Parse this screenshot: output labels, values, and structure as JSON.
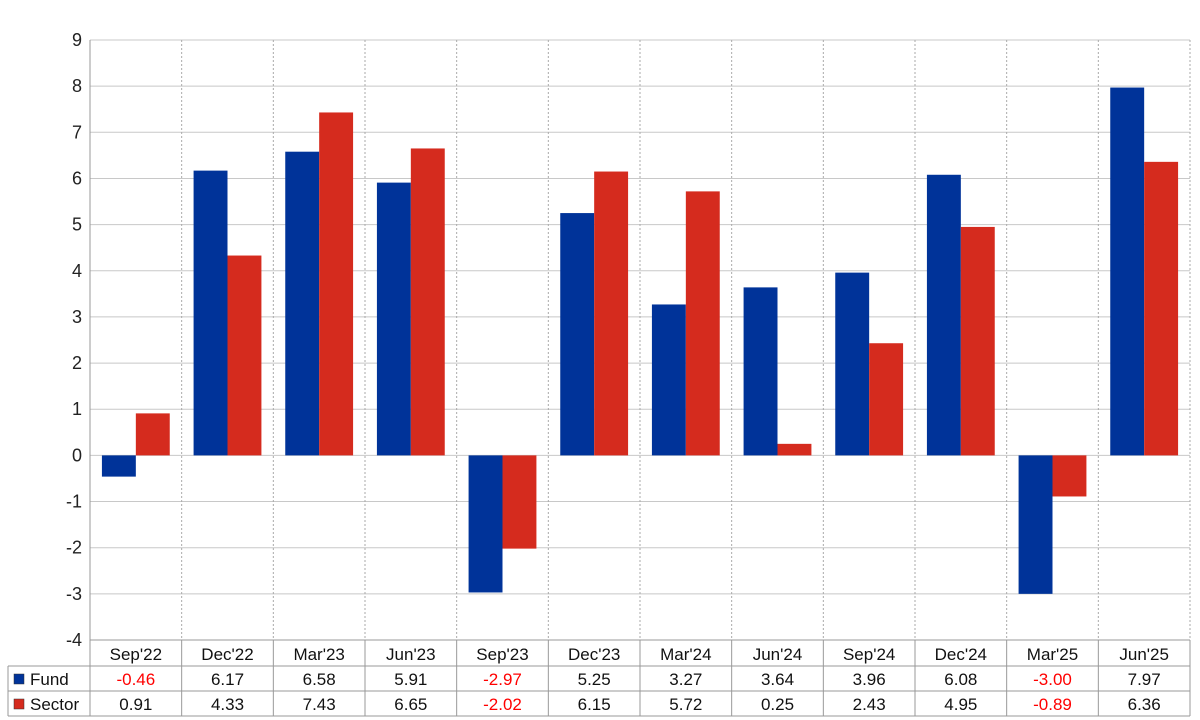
{
  "chart_data": {
    "type": "bar",
    "categories": [
      "Sep'22",
      "Dec'22",
      "Mar'23",
      "Jun'23",
      "Sep'23",
      "Dec'23",
      "Mar'24",
      "Jun'24",
      "Sep'24",
      "Dec'24",
      "Mar'25",
      "Jun'25"
    ],
    "series": [
      {
        "name": "Fund",
        "values": [
          -0.46,
          6.17,
          6.58,
          5.91,
          -2.97,
          5.25,
          3.27,
          3.64,
          3.96,
          6.08,
          -3.0,
          7.97
        ],
        "color": "#003399"
      },
      {
        "name": "Sector",
        "values": [
          0.91,
          4.33,
          7.43,
          6.65,
          -2.02,
          6.15,
          5.72,
          0.25,
          2.43,
          4.95,
          -0.89,
          6.36
        ],
        "color": "#d52b1e"
      }
    ],
    "table_values": {
      "Fund": [
        "-0.46",
        "6.17",
        "6.58",
        "5.91",
        "-2.97",
        "5.25",
        "3.27",
        "3.64",
        "3.96",
        "6.08",
        "-3.00",
        "7.97"
      ],
      "Sector": [
        "0.91",
        "4.33",
        "7.43",
        "6.65",
        "-2.02",
        "6.15",
        "5.72",
        "0.25",
        "2.43",
        "4.95",
        "-0.89",
        "6.36"
      ]
    },
    "ylim": [
      -4,
      9
    ],
    "yticks": [
      "-4",
      "-3",
      "-2",
      "-1",
      "0",
      "1",
      "2",
      "3",
      "4",
      "5",
      "6",
      "7",
      "8",
      "9"
    ],
    "grid": true,
    "negative_value_color": "#ff0000",
    "legend_placement": "table-left"
  }
}
